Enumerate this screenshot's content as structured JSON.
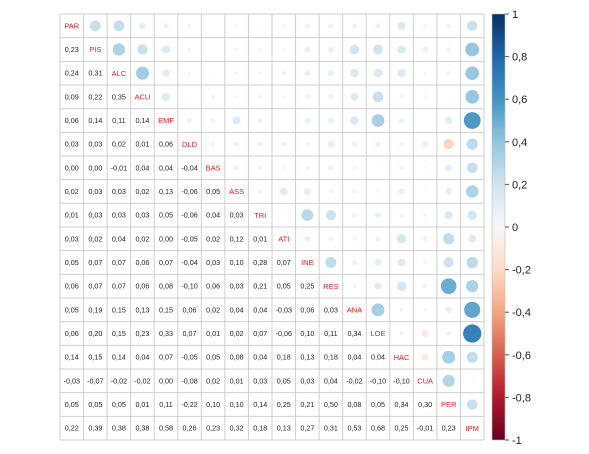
{
  "chart_data": {
    "type": "heatmap",
    "variables": [
      "PAR",
      "PIS",
      "ALC",
      "ACU",
      "EMF",
      "DLD",
      "BAS",
      "ASS",
      "TRI",
      "ATI",
      "INE",
      "RES",
      "ANA",
      "LOE",
      "HAC",
      "CUA",
      "PER",
      "IPM"
    ],
    "lower_triangle_labels": [
      [],
      [
        "0,23"
      ],
      [
        "0,24",
        "0,31"
      ],
      [
        "0,09",
        "0,22",
        "0,35"
      ],
      [
        "0,06",
        "0,14",
        "0,11",
        "0,14"
      ],
      [
        "0,03",
        "0,03",
        "0,02",
        "0,01",
        "0,06"
      ],
      [
        "0,00",
        "0,00",
        "-0,01",
        "0,04",
        "0,04",
        "-0,04"
      ],
      [
        "0,02",
        "0,03",
        "0,03",
        "0,02",
        "0,13",
        "-0,06",
        "0,05"
      ],
      [
        "0,01",
        "0,03",
        "0,03",
        "0,03",
        "0,05",
        "-0,06",
        "0,04",
        "0,03"
      ],
      [
        "0,03",
        "0,02",
        "0,04",
        "0,02",
        "0,00",
        "-0,05",
        "0,02",
        "0,12",
        "0,01"
      ],
      [
        "0,05",
        "0,07",
        "0,07",
        "0,06",
        "0,07",
        "-0,04",
        "0,03",
        "0,10",
        "0,28",
        "0,07"
      ],
      [
        "0,06",
        "0,07",
        "0,07",
        "0,06",
        "0,08",
        "-0,10",
        "0,06",
        "0,03",
        "0,21",
        "0,05",
        "0,25"
      ],
      [
        "0,05",
        "0,19",
        "0,15",
        "0,13",
        "0,15",
        "0,06",
        "0,02",
        "0,04",
        "0,04",
        "-0,03",
        "0,06",
        "0,03"
      ],
      [
        "0,06",
        "0,20",
        "0,15",
        "0,23",
        "0,33",
        "0,07",
        "0,01",
        "0,02",
        "0,07",
        "-0,06",
        "0,10",
        "0,11",
        "0,34"
      ],
      [
        "0,14",
        "0,15",
        "0,14",
        "0,04",
        "0,07",
        "-0,05",
        "0,05",
        "0,08",
        "0,04",
        "0,18",
        "0,13",
        "0,18",
        "0,04",
        "0,04"
      ],
      [
        "-0,03",
        "-0,07",
        "-0,02",
        "-0,02",
        "0,00",
        "-0,08",
        "0,02",
        "0,01",
        "0,03",
        "0,05",
        "0,03",
        "0,04",
        "-0,02",
        "-0,10",
        "-0,10"
      ],
      [
        "0,05",
        "0,05",
        "0,05",
        "0,01",
        "0,11",
        "-0,22",
        "0,10",
        "0,10",
        "0,14",
        "0,25",
        "0,21",
        "0,50",
        "0,08",
        "0,05",
        "0,34",
        "0,30"
      ],
      [
        "0,22",
        "0,39",
        "0,38",
        "0,38",
        "0,58",
        "0,26",
        "0,23",
        "0,32",
        "0,18",
        "0,13",
        "0,27",
        "0,31",
        "0,53",
        "0,68",
        "0,25",
        "-0,01",
        "0,23"
      ]
    ],
    "colorbar": {
      "range": [
        -1,
        1
      ],
      "tick_labels": [
        "1",
        "0,8",
        "0,6",
        "0,4",
        "0,2",
        "0",
        "-0,2",
        "-0,4",
        "-0,6",
        "-0,8",
        "-1"
      ],
      "color_positive": "#053061",
      "color_mid": "#f7f7f7",
      "color_negative": "#67001f"
    },
    "upper_triangle": "circles",
    "grid": true
  }
}
